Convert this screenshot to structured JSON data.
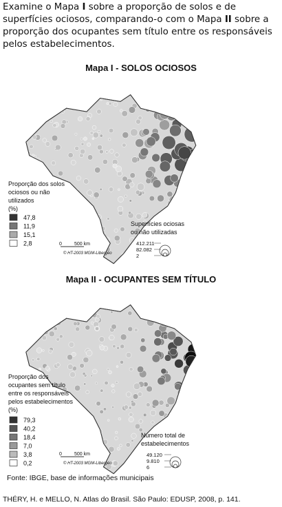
{
  "question": {
    "parts": [
      "Examine o Mapa ",
      "I",
      " sobre a proporção de solos e de superfícies ociosos, comparando-o com o Mapa ",
      "II",
      " sobre a proporção dos ocupantes sem título entre os responsáveis pelos estabelecimentos."
    ]
  },
  "maps": [
    {
      "title": "Mapa I - SOLOS OCIOSOS",
      "color_legend": {
        "title_lines": [
          "Proporção dos solos",
          "ociosos ou não",
          "utilizados",
          "(%)"
        ],
        "labels": [
          "47,8",
          "11,9",
          "15,1",
          "2,8"
        ]
      },
      "size_legend": {
        "title_lines": [
          "Superfícies ociosas",
          "ou não utilizadas"
        ],
        "labels": [
          "412.211",
          "82.082",
          "2"
        ]
      },
      "scale": {
        "start": "0",
        "end": "500 km"
      },
      "credit": "© HT-2003 MGM-Libergéo"
    },
    {
      "title": "Mapa II - OCUPANTES SEM TÍTULO",
      "color_legend": {
        "title_lines": [
          "Proporção dos",
          "ocupantes sem título",
          "entre os responsáveis",
          "pelos estabelecimentos",
          "(%)"
        ],
        "labels": [
          "79,3",
          "40,2",
          "18,4",
          "7,0",
          "3,8",
          "0,2"
        ]
      },
      "size_legend": {
        "title_lines": [
          "Número total de",
          "estabelecimentos"
        ],
        "labels": [
          "49.120",
          "9.810",
          "6"
        ]
      },
      "scale": {
        "start": "0",
        "end": "500 km"
      },
      "credit": "© HT-2003 MGM-Libergéo"
    }
  ],
  "source": "Fonte: IBGE, base de informações municipais",
  "citation": "THÉRY, H. e MELLO, N. Atlas do Brasil. São Paulo: EDUSP, 2008, p. 141."
}
